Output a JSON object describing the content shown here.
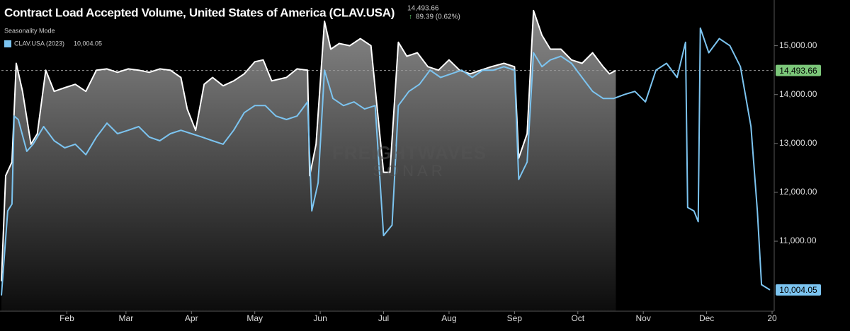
{
  "chart_data": {
    "type": "line",
    "title": "Contract Load Accepted Volume, United States of America (CLAV.USA)",
    "header_value": "14,493.66",
    "header_change": "89.39 (0.62%)",
    "mode": "Seasonality Mode",
    "watermark": [
      "FREIGHTWAVES",
      "SONAR"
    ],
    "xlim": [
      0,
      366
    ],
    "xticks": [
      {
        "value": 31,
        "label": "Feb"
      },
      {
        "value": 59,
        "label": "Mar"
      },
      {
        "value": 90,
        "label": "Apr"
      },
      {
        "value": 120,
        "label": "May"
      },
      {
        "value": 151,
        "label": "Jun"
      },
      {
        "value": 181,
        "label": "Jul"
      },
      {
        "value": 212,
        "label": "Aug"
      },
      {
        "value": 243,
        "label": "Sep"
      },
      {
        "value": 273,
        "label": "Oct"
      },
      {
        "value": 304,
        "label": "Nov"
      },
      {
        "value": 334,
        "label": "Dec"
      },
      {
        "value": 365,
        "label": "20"
      }
    ],
    "ylim": [
      9568,
      15935
    ],
    "yticks": [
      {
        "value": 11000,
        "label": "11,000.00"
      },
      {
        "value": 12000,
        "label": "12,000.00"
      },
      {
        "value": 13000,
        "label": "13,000.00"
      },
      {
        "value": 14000,
        "label": "14,000.00"
      },
      {
        "value": 15000,
        "label": "15,000.00"
      }
    ],
    "grid": false,
    "series": [
      {
        "color": "#ffffff",
        "area": true,
        "tag_color": "#7cc77a",
        "end_label": "14,493.66",
        "x": [
          0,
          2,
          5,
          7,
          10,
          14,
          17,
          21,
          25,
          30,
          35,
          40,
          45,
          50,
          55,
          60,
          65,
          70,
          75,
          80,
          85,
          88,
          92,
          96,
          100,
          105,
          110,
          115,
          120,
          124,
          128,
          135,
          140,
          145,
          146,
          149,
          153,
          156,
          160,
          165,
          170,
          175,
          181,
          184,
          188,
          192,
          197,
          202,
          207,
          212,
          217,
          222,
          227,
          232,
          238,
          243,
          245,
          249,
          252,
          256,
          260,
          265,
          270,
          275,
          280,
          285,
          288,
          291
        ],
        "values": [
          10180,
          12340,
          12620,
          14640,
          14065,
          12985,
          13200,
          14500,
          14065,
          14140,
          14210,
          14065,
          14500,
          14525,
          14455,
          14525,
          14500,
          14455,
          14525,
          14500,
          14350,
          13705,
          13270,
          14210,
          14350,
          14180,
          14280,
          14425,
          14670,
          14710,
          14280,
          14350,
          14525,
          14500,
          12340,
          12985,
          15500,
          14930,
          15045,
          15000,
          15145,
          15000,
          12410,
          12410,
          15070,
          14785,
          14855,
          14570,
          14500,
          14710,
          14500,
          14425,
          14500,
          14570,
          14640,
          14570,
          12700,
          13200,
          15720,
          15215,
          14930,
          14930,
          14710,
          14640,
          14855,
          14570,
          14425,
          14493.66
        ]
      },
      {
        "name": "CLAV.USA (2023)",
        "legend_value": "10,004.05",
        "color": "#7cc4f0",
        "area": false,
        "tag_color": "#7cc4f0",
        "end_label": "10,004.05",
        "x": [
          0,
          3,
          5,
          6,
          8,
          12,
          15,
          20,
          25,
          30,
          35,
          40,
          45,
          50,
          55,
          60,
          65,
          70,
          75,
          80,
          85,
          90,
          95,
          100,
          105,
          110,
          115,
          120,
          125,
          130,
          135,
          140,
          145,
          147,
          150,
          153,
          157,
          162,
          167,
          172,
          177,
          181,
          185,
          188,
          193,
          198,
          203,
          208,
          213,
          218,
          223,
          228,
          233,
          238,
          243,
          245,
          249,
          252,
          256,
          260,
          265,
          270,
          275,
          280,
          285,
          290,
          295,
          300,
          305,
          310,
          315,
          320,
          324,
          325,
          328,
          330,
          331,
          335,
          340,
          345,
          350,
          355,
          358,
          360,
          364
        ],
        "values": [
          9890,
          11620,
          11760,
          13560,
          13490,
          12840,
          12985,
          13345,
          13055,
          12910,
          12985,
          12770,
          13130,
          13415,
          13200,
          13270,
          13345,
          13130,
          13055,
          13200,
          13270,
          13200,
          13130,
          13055,
          12985,
          13270,
          13630,
          13775,
          13775,
          13560,
          13490,
          13560,
          13850,
          11620,
          12195,
          14500,
          13920,
          13775,
          13850,
          13705,
          13775,
          11115,
          11330,
          13775,
          14065,
          14210,
          14500,
          14350,
          14425,
          14500,
          14350,
          14500,
          14500,
          14570,
          14500,
          12265,
          12620,
          14855,
          14570,
          14710,
          14785,
          14640,
          14350,
          14065,
          13920,
          13920,
          14000,
          14065,
          13850,
          14500,
          14640,
          14350,
          15070,
          11690,
          11620,
          11400,
          15360,
          14855,
          15145,
          15000,
          14570,
          13345,
          11620,
          10110,
          10004.05
        ]
      }
    ]
  }
}
